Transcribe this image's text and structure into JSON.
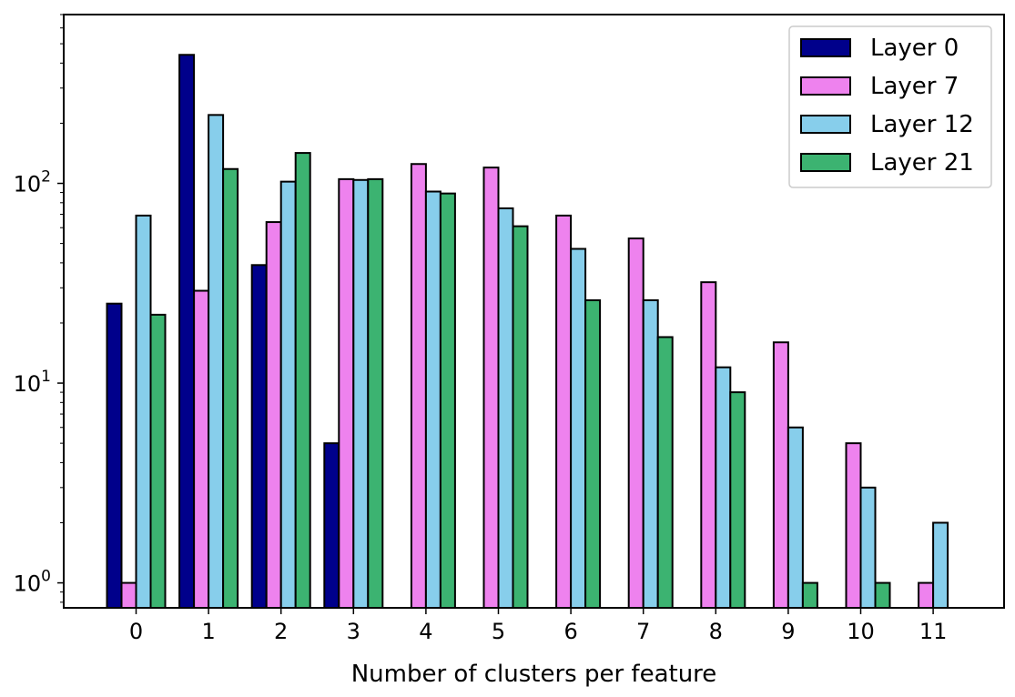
{
  "chart_data": {
    "type": "bar",
    "yscale": "log",
    "xlabel": "Number of clusters per feature",
    "ylabel": "",
    "title": "",
    "categories": [
      "0",
      "1",
      "2",
      "3",
      "4",
      "5",
      "6",
      "7",
      "8",
      "9",
      "10",
      "11"
    ],
    "ylim": [
      0.75,
      700
    ],
    "yticks": [
      {
        "value": 1,
        "base": "10",
        "exp": "0"
      },
      {
        "value": 10,
        "base": "10",
        "exp": "1"
      },
      {
        "value": 100,
        "base": "10",
        "exp": "2"
      }
    ],
    "legend_position": "top-right",
    "series": [
      {
        "name": "Layer 0",
        "color": "#00008b",
        "values": [
          25,
          440,
          39,
          5,
          null,
          null,
          null,
          null,
          null,
          null,
          null,
          null
        ]
      },
      {
        "name": "Layer 7",
        "color": "#ee82ee",
        "values": [
          1,
          29,
          64,
          105,
          125,
          120,
          69,
          53,
          32,
          16,
          5,
          1
        ]
      },
      {
        "name": "Layer 12",
        "color": "#87ceeb",
        "values": [
          69,
          220,
          102,
          104,
          91,
          75,
          47,
          26,
          12,
          6,
          3,
          2
        ]
      },
      {
        "name": "Layer 21",
        "color": "#3cb371",
        "values": [
          22,
          118,
          142,
          105,
          89,
          61,
          26,
          17,
          9,
          1,
          1,
          null
        ]
      }
    ]
  }
}
